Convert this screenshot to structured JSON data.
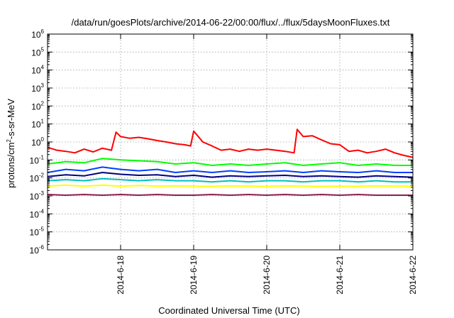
{
  "chart_data": {
    "type": "line",
    "title": "/data/run/goesPlots/archive/2014-06-22/00:00/flux/../flux/5daysMoonFluxes.txt",
    "xlabel": "Coordinated Universal Time (UTC)",
    "ylabel": {
      "base": "protons/cm",
      "sup": "2",
      "rest": "-s-sr-MeV"
    },
    "yscale": "log",
    "ylim": [
      1e-06,
      1000000.0
    ],
    "y_ticks": [
      {
        "base": "10",
        "exp": "-6",
        "value": 1e-06
      },
      {
        "base": "10",
        "exp": "-5",
        "value": 1e-05
      },
      {
        "base": "10",
        "exp": "-4",
        "value": 0.0001
      },
      {
        "base": "10",
        "exp": "-3",
        "value": 0.001
      },
      {
        "base": "10",
        "exp": "-2",
        "value": 0.01
      },
      {
        "base": "10",
        "exp": "-1",
        "value": 0.1
      },
      {
        "base": "10",
        "exp": "0",
        "value": 1
      },
      {
        "base": "10",
        "exp": "1",
        "value": 10
      },
      {
        "base": "10",
        "exp": "2",
        "value": 100
      },
      {
        "base": "10",
        "exp": "3",
        "value": 1000
      },
      {
        "base": "10",
        "exp": "4",
        "value": 10000
      },
      {
        "base": "10",
        "exp": "5",
        "value": 100000
      },
      {
        "base": "10",
        "exp": "6",
        "value": 1000000
      }
    ],
    "xlim": [
      "2014-06-17 00:00",
      "2014-06-22 00:00"
    ],
    "x_ticks": [
      {
        "label": "2014-6-18",
        "value": "2014-06-18 00:00"
      },
      {
        "label": "2014-6-19",
        "value": "2014-06-19 00:00"
      },
      {
        "label": "2014-6-20",
        "value": "2014-06-20 00:00"
      },
      {
        "label": "2014-6-21",
        "value": "2014-06-21 00:00"
      },
      {
        "label": "2014-6-22",
        "value": "2014-06-22 00:00"
      }
    ],
    "grid": true,
    "series": [
      {
        "color": "#ff0000",
        "x": [
          "2014-06-17 00:00",
          "2014-06-17 03:00",
          "2014-06-17 06:00",
          "2014-06-17 09:00",
          "2014-06-17 12:00",
          "2014-06-17 15:00",
          "2014-06-17 18:00",
          "2014-06-17 21:00",
          "2014-06-17 22:30",
          "2014-06-18 00:00",
          "2014-06-18 03:00",
          "2014-06-18 06:00",
          "2014-06-18 09:00",
          "2014-06-18 12:00",
          "2014-06-18 15:00",
          "2014-06-18 18:00",
          "2014-06-18 21:00",
          "2014-06-18 23:00",
          "2014-06-19 00:00",
          "2014-06-19 03:00",
          "2014-06-19 06:00",
          "2014-06-19 09:00",
          "2014-06-19 12:00",
          "2014-06-19 15:00",
          "2014-06-19 18:00",
          "2014-06-19 21:00",
          "2014-06-20 00:00",
          "2014-06-20 03:00",
          "2014-06-20 06:00",
          "2014-06-20 09:00",
          "2014-06-20 10:00",
          "2014-06-20 12:00",
          "2014-06-20 15:00",
          "2014-06-20 18:00",
          "2014-06-20 21:00",
          "2014-06-21 00:00",
          "2014-06-21 03:00",
          "2014-06-21 06:00",
          "2014-06-21 09:00",
          "2014-06-21 12:00",
          "2014-06-21 15:00",
          "2014-06-21 18:00",
          "2014-06-21 21:00",
          "2014-06-22 00:00"
        ],
        "values": [
          0.5,
          0.35,
          0.3,
          0.25,
          0.4,
          0.28,
          0.45,
          0.35,
          3.5,
          2.0,
          1.6,
          1.8,
          1.5,
          1.2,
          1.0,
          0.8,
          0.7,
          0.6,
          4.0,
          1.0,
          0.6,
          0.35,
          0.4,
          0.3,
          0.4,
          0.35,
          0.4,
          0.35,
          0.3,
          0.25,
          5.0,
          2.0,
          2.2,
          1.3,
          0.8,
          0.7,
          0.3,
          0.35,
          0.25,
          0.3,
          0.4,
          0.25,
          0.18,
          0.14
        ]
      },
      {
        "color": "#00ff00",
        "x": [
          "2014-06-17 00:00",
          "2014-06-17 06:00",
          "2014-06-17 12:00",
          "2014-06-17 18:00",
          "2014-06-18 00:00",
          "2014-06-18 06:00",
          "2014-06-18 12:00",
          "2014-06-18 18:00",
          "2014-06-19 00:00",
          "2014-06-19 06:00",
          "2014-06-19 12:00",
          "2014-06-19 18:00",
          "2014-06-20 00:00",
          "2014-06-20 06:00",
          "2014-06-20 12:00",
          "2014-06-20 18:00",
          "2014-06-21 00:00",
          "2014-06-21 06:00",
          "2014-06-21 12:00",
          "2014-06-21 18:00",
          "2014-06-22 00:00"
        ],
        "values": [
          0.06,
          0.08,
          0.07,
          0.12,
          0.1,
          0.09,
          0.08,
          0.06,
          0.07,
          0.05,
          0.06,
          0.05,
          0.06,
          0.07,
          0.05,
          0.06,
          0.07,
          0.05,
          0.06,
          0.05,
          0.05
        ]
      },
      {
        "color": "#0040ff",
        "x": [
          "2014-06-17 00:00",
          "2014-06-17 06:00",
          "2014-06-17 12:00",
          "2014-06-17 18:00",
          "2014-06-18 00:00",
          "2014-06-18 06:00",
          "2014-06-18 12:00",
          "2014-06-18 18:00",
          "2014-06-19 00:00",
          "2014-06-19 06:00",
          "2014-06-19 12:00",
          "2014-06-19 18:00",
          "2014-06-20 00:00",
          "2014-06-20 06:00",
          "2014-06-20 12:00",
          "2014-06-20 18:00",
          "2014-06-21 00:00",
          "2014-06-21 06:00",
          "2014-06-21 12:00",
          "2014-06-21 18:00",
          "2014-06-22 00:00"
        ],
        "values": [
          0.02,
          0.03,
          0.025,
          0.04,
          0.03,
          0.025,
          0.03,
          0.02,
          0.025,
          0.02,
          0.025,
          0.02,
          0.022,
          0.025,
          0.02,
          0.025,
          0.022,
          0.02,
          0.025,
          0.02,
          0.02
        ]
      },
      {
        "color": "#000080",
        "x": [
          "2014-06-17 00:00",
          "2014-06-17 06:00",
          "2014-06-17 12:00",
          "2014-06-17 18:00",
          "2014-06-18 00:00",
          "2014-06-18 06:00",
          "2014-06-18 12:00",
          "2014-06-18 18:00",
          "2014-06-19 00:00",
          "2014-06-19 06:00",
          "2014-06-19 12:00",
          "2014-06-19 18:00",
          "2014-06-20 00:00",
          "2014-06-20 06:00",
          "2014-06-20 12:00",
          "2014-06-20 18:00",
          "2014-06-21 00:00",
          "2014-06-21 06:00",
          "2014-06-21 12:00",
          "2014-06-21 18:00",
          "2014-06-22 00:00"
        ],
        "values": [
          0.012,
          0.015,
          0.013,
          0.02,
          0.016,
          0.014,
          0.015,
          0.012,
          0.014,
          0.011,
          0.013,
          0.012,
          0.013,
          0.014,
          0.012,
          0.013,
          0.012,
          0.011,
          0.013,
          0.012,
          0.011
        ]
      },
      {
        "color": "#00c0c0",
        "x": [
          "2014-06-17 00:00",
          "2014-06-17 06:00",
          "2014-06-17 12:00",
          "2014-06-17 18:00",
          "2014-06-18 00:00",
          "2014-06-18 06:00",
          "2014-06-18 12:00",
          "2014-06-18 18:00",
          "2014-06-19 00:00",
          "2014-06-19 06:00",
          "2014-06-19 12:00",
          "2014-06-19 18:00",
          "2014-06-20 00:00",
          "2014-06-20 06:00",
          "2014-06-20 12:00",
          "2014-06-20 18:00",
          "2014-06-21 00:00",
          "2014-06-21 06:00",
          "2014-06-21 12:00",
          "2014-06-21 18:00",
          "2014-06-22 00:00"
        ],
        "values": [
          0.007,
          0.008,
          0.007,
          0.009,
          0.008,
          0.007,
          0.008,
          0.007,
          0.007,
          0.006,
          0.007,
          0.006,
          0.007,
          0.007,
          0.006,
          0.007,
          0.007,
          0.006,
          0.007,
          0.006,
          0.006
        ]
      },
      {
        "color": "#ffff00",
        "x": [
          "2014-06-17 00:00",
          "2014-06-17 06:00",
          "2014-06-17 12:00",
          "2014-06-17 18:00",
          "2014-06-18 00:00",
          "2014-06-18 06:00",
          "2014-06-18 12:00",
          "2014-06-18 18:00",
          "2014-06-19 00:00",
          "2014-06-19 06:00",
          "2014-06-19 12:00",
          "2014-06-19 18:00",
          "2014-06-20 00:00",
          "2014-06-20 06:00",
          "2014-06-20 12:00",
          "2014-06-20 18:00",
          "2014-06-21 00:00",
          "2014-06-21 06:00",
          "2014-06-21 12:00",
          "2014-06-21 18:00",
          "2014-06-22 00:00"
        ],
        "values": [
          0.0035,
          0.004,
          0.0035,
          0.004,
          0.0035,
          0.0038,
          0.0035,
          0.0036,
          0.0035,
          0.0034,
          0.0036,
          0.0035,
          0.0034,
          0.0036,
          0.0035,
          0.0034,
          0.0035,
          0.0034,
          0.0036,
          0.0035,
          0.0035
        ]
      },
      {
        "color": "#8b2252",
        "x": [
          "2014-06-17 00:00",
          "2014-06-17 06:00",
          "2014-06-17 12:00",
          "2014-06-17 18:00",
          "2014-06-18 00:00",
          "2014-06-18 06:00",
          "2014-06-18 12:00",
          "2014-06-18 18:00",
          "2014-06-19 00:00",
          "2014-06-19 06:00",
          "2014-06-19 12:00",
          "2014-06-19 18:00",
          "2014-06-20 00:00",
          "2014-06-20 06:00",
          "2014-06-20 12:00",
          "2014-06-20 18:00",
          "2014-06-21 00:00",
          "2014-06-21 06:00",
          "2014-06-21 12:00",
          "2014-06-21 18:00",
          "2014-06-22 00:00"
        ],
        "values": [
          0.0012,
          0.0011,
          0.0012,
          0.0011,
          0.0012,
          0.0011,
          0.0012,
          0.0011,
          0.0011,
          0.0012,
          0.0011,
          0.0012,
          0.0011,
          0.0012,
          0.0011,
          0.0012,
          0.0011,
          0.0012,
          0.0011,
          0.0011,
          0.0011
        ]
      }
    ]
  }
}
